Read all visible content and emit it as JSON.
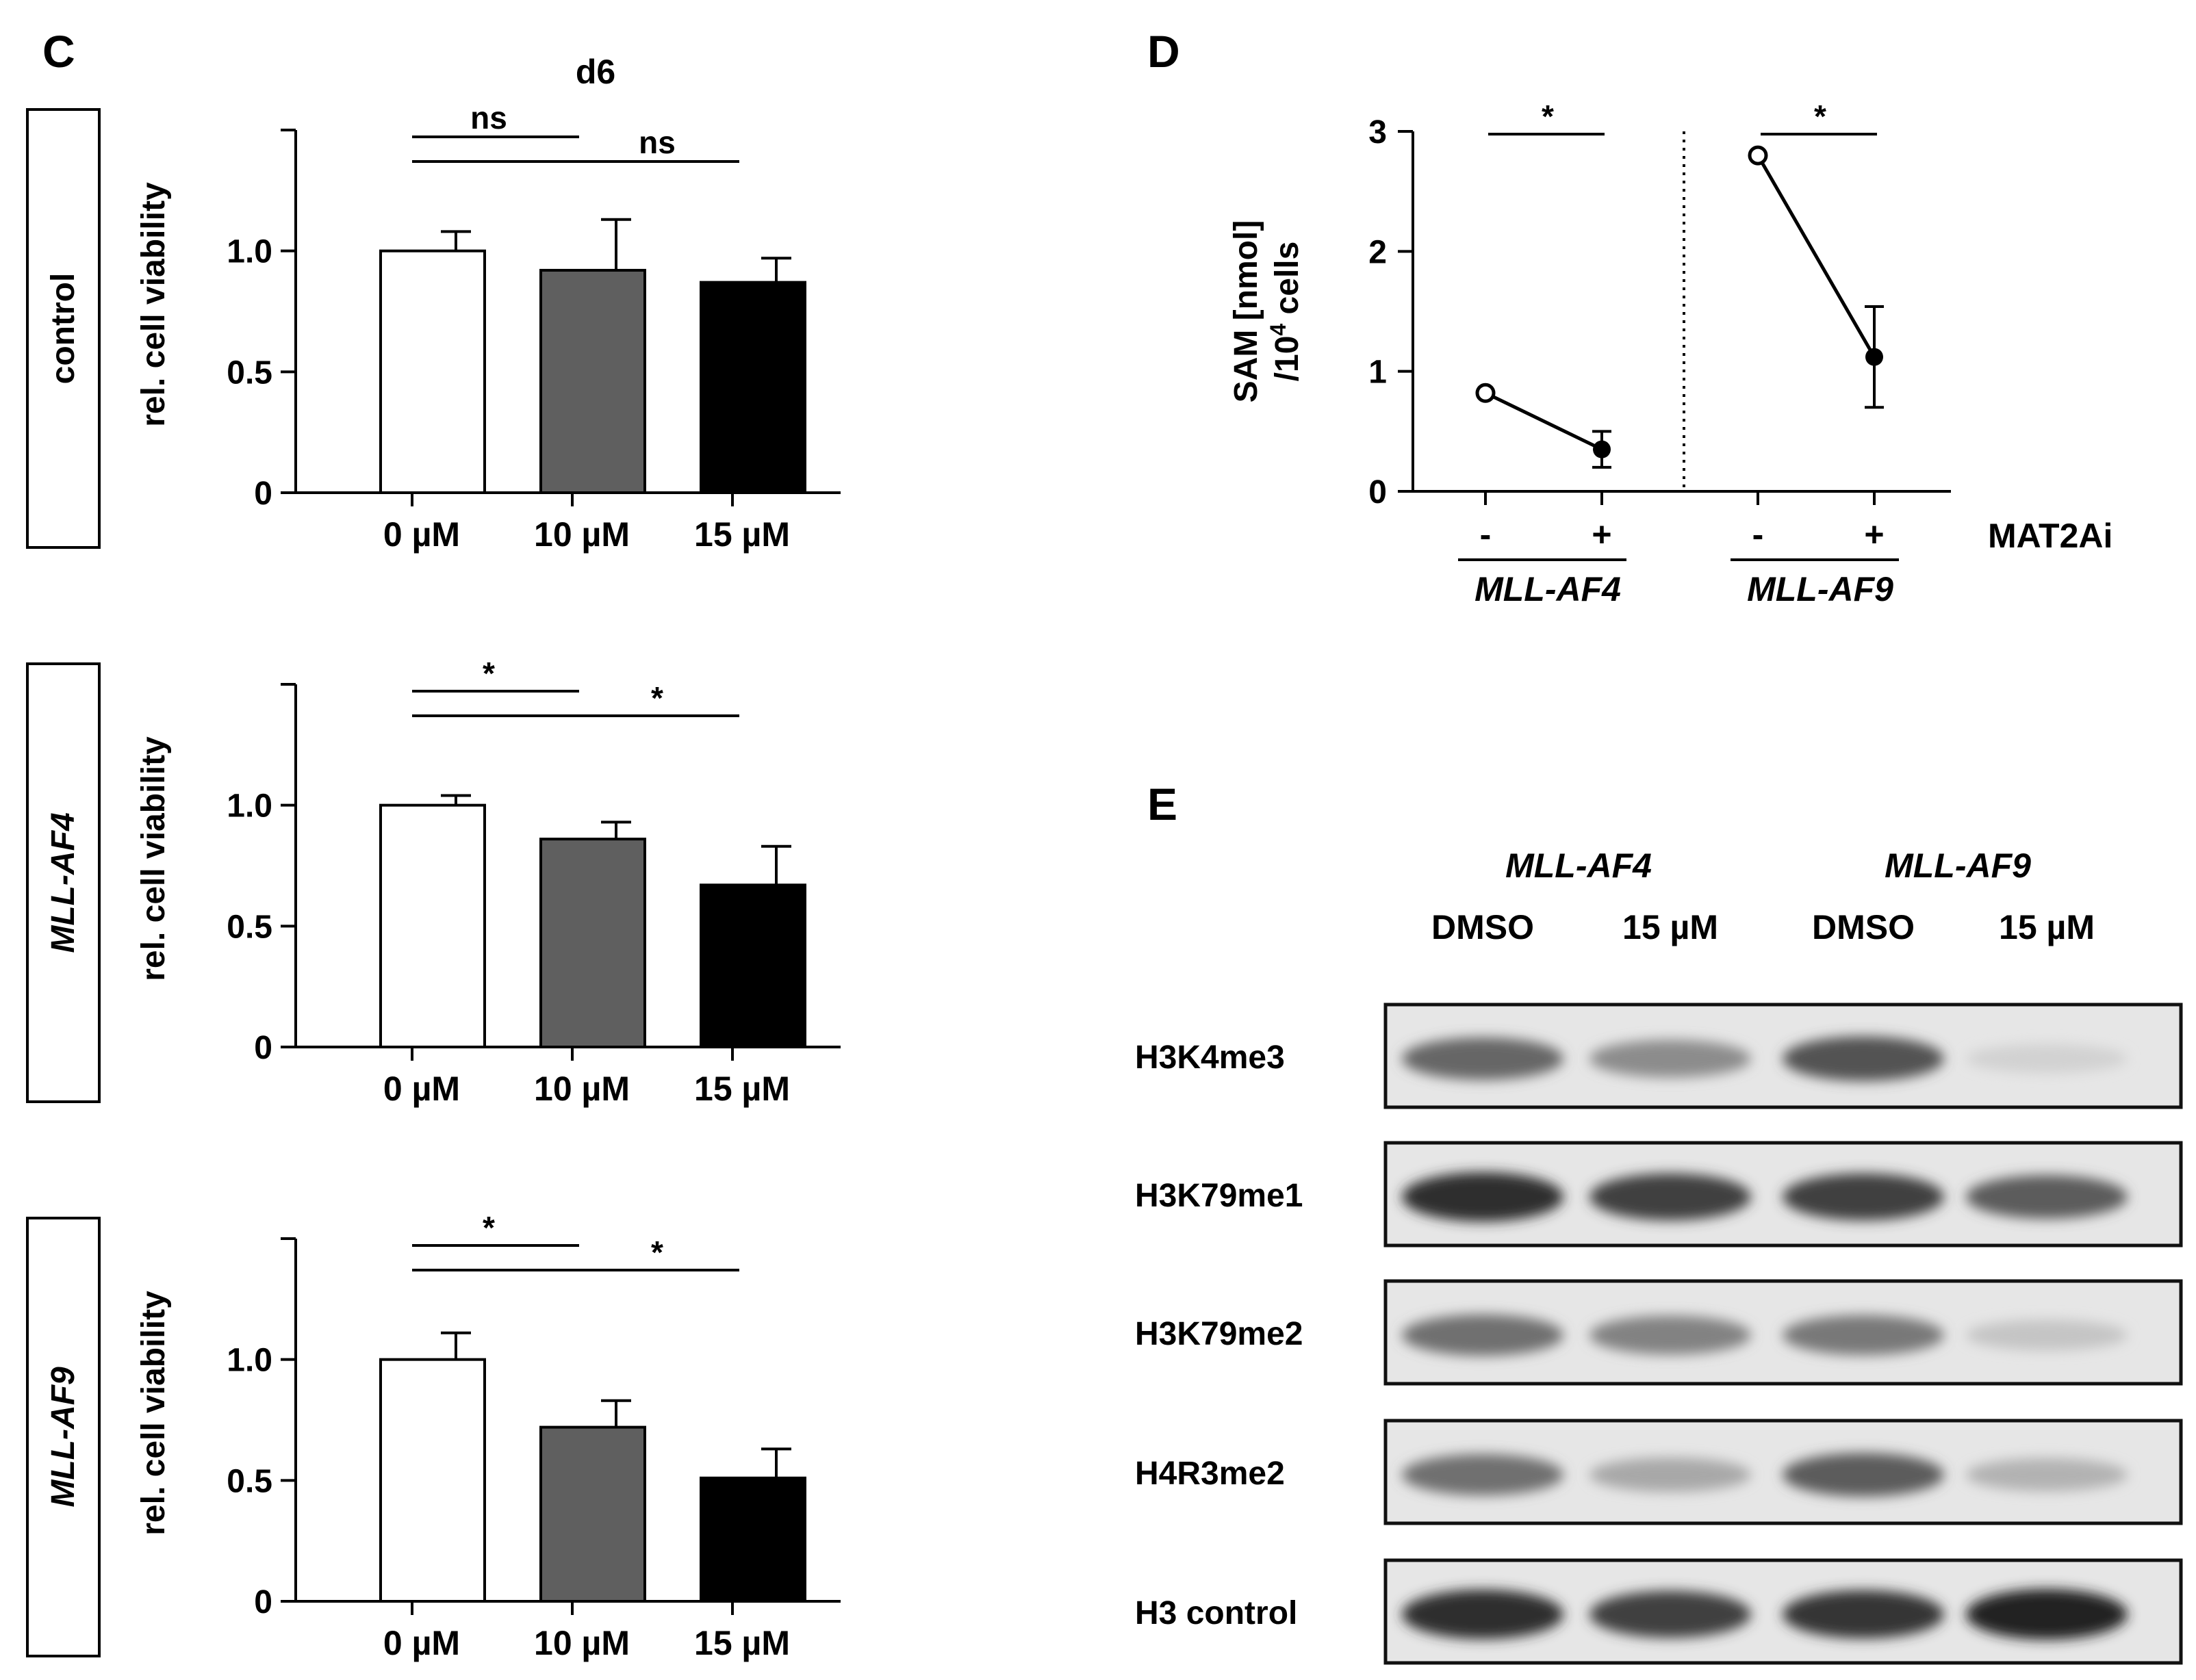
{
  "panels": {
    "c_letter": "C",
    "d_letter": "D",
    "e_letter": "E"
  },
  "chart_data": [
    {
      "type": "bar",
      "title": "d6",
      "row_label": "control",
      "row_label_italic": false,
      "ylabel": "rel. cell viability",
      "categories": [
        "0 µM",
        "10 µM",
        "15 µM"
      ],
      "values": [
        1.0,
        0.92,
        0.87
      ],
      "errors": [
        0.08,
        0.21,
        0.1
      ],
      "colors": [
        "#ffffff",
        "#5f5f5f",
        "#000000"
      ],
      "yticks": [
        "0",
        "0.5",
        "1.0"
      ],
      "ylim": [
        0,
        1.5
      ],
      "significance": [
        {
          "from": 0,
          "to": 1,
          "label": "ns"
        },
        {
          "from": 0,
          "to": 2,
          "label": "ns"
        }
      ]
    },
    {
      "type": "bar",
      "title": "",
      "row_label": "MLL-AF4",
      "row_label_italic": true,
      "ylabel": "rel. cell viability",
      "categories": [
        "0 µM",
        "10 µM",
        "15 µM"
      ],
      "values": [
        1.0,
        0.86,
        0.67
      ],
      "errors": [
        0.04,
        0.07,
        0.16
      ],
      "colors": [
        "#ffffff",
        "#5f5f5f",
        "#000000"
      ],
      "yticks": [
        "0",
        "0.5",
        "1.0"
      ],
      "ylim": [
        0,
        1.5
      ],
      "significance": [
        {
          "from": 0,
          "to": 1,
          "label": "*"
        },
        {
          "from": 0,
          "to": 2,
          "label": "*"
        }
      ]
    },
    {
      "type": "bar",
      "title": "",
      "row_label": "MLL-AF9",
      "row_label_italic": true,
      "ylabel": "rel. cell viability",
      "categories": [
        "0 µM",
        "10 µM",
        "15 µM"
      ],
      "values": [
        1.0,
        0.72,
        0.51
      ],
      "errors": [
        0.11,
        0.11,
        0.12
      ],
      "colors": [
        "#ffffff",
        "#5f5f5f",
        "#000000"
      ],
      "yticks": [
        "0",
        "0.5",
        "1.0"
      ],
      "ylim": [
        0,
        1.5
      ],
      "significance": [
        {
          "from": 0,
          "to": 1,
          "label": "*"
        },
        {
          "from": 0,
          "to": 2,
          "label": "*"
        }
      ]
    },
    {
      "type": "line",
      "ylabel_line1": "SAM [nmol]",
      "ylabel_line2_pre": "/10",
      "ylabel_line2_sup": "4",
      "ylabel_line2_post": " cells",
      "ylim": [
        0,
        3
      ],
      "yticks": [
        "0",
        "1",
        "2",
        "3"
      ],
      "treatment_label": "MAT2Ai",
      "groups": [
        {
          "name": "MLL-AF4",
          "ticks": [
            "-",
            "+"
          ],
          "values": [
            0.82,
            0.35
          ],
          "errors": [
            0,
            0.15
          ],
          "significance": "*"
        },
        {
          "name": "MLL-AF9",
          "ticks": [
            "-",
            "+"
          ],
          "values": [
            2.8,
            1.12
          ],
          "errors": [
            0,
            0.42
          ],
          "significance": "*"
        }
      ]
    }
  ],
  "blot": {
    "groups": [
      "MLL-AF4",
      "MLL-AF9"
    ],
    "lanes": [
      "DMSO",
      "15 µM",
      "DMSO",
      "15 µM"
    ],
    "rows": [
      {
        "label": "H3K4me3",
        "intensities": [
          0.65,
          0.45,
          0.75,
          0.08
        ]
      },
      {
        "label": "H3K79me1",
        "intensities": [
          0.95,
          0.85,
          0.85,
          0.7
        ]
      },
      {
        "label": "H3K79me2",
        "intensities": [
          0.6,
          0.5,
          0.55,
          0.15
        ]
      },
      {
        "label": "H4R3me2",
        "intensities": [
          0.6,
          0.3,
          0.7,
          0.25
        ]
      },
      {
        "label": "H3 control",
        "intensities": [
          0.95,
          0.85,
          0.9,
          1.0
        ]
      }
    ]
  }
}
